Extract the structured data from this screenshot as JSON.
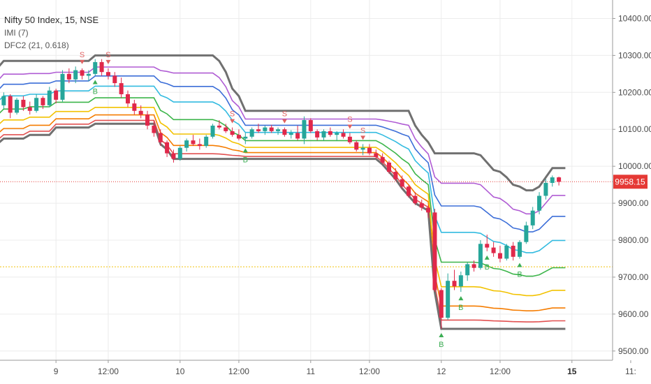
{
  "legend": {
    "title": "Nifty 50 Index, 15, NSE",
    "line2": "IMI (7)",
    "line3": "DFC2 (21, 0.618)"
  },
  "colors": {
    "up": "#26a69a",
    "down": "#e0284a",
    "outer": "#707070",
    "price_line": "#e53935",
    "mid_line": "#f1c40f",
    "signal_sell": "#e06060",
    "signal_buy": "#3cae54",
    "bands": [
      "#e25050",
      "#f57c00",
      "#f2c200",
      "#3cb54a",
      "#33bbe0",
      "#3c6ed8",
      "#b05cd4"
    ]
  },
  "chart_data": {
    "type": "candlestick",
    "title": "Nifty 50 Index, 15, NSE",
    "yaxis": {
      "ylim": [
        9475,
        10450
      ],
      "ticks": [
        "10400.00",
        "10300.00",
        "10200.00",
        "10100.00",
        "10000.00",
        "9900.00",
        "9800.00",
        "9700.00",
        "9600.00",
        "9500.00"
      ]
    },
    "xaxis": {
      "ticks": [
        {
          "label": "9",
          "bold": false,
          "bar": 9
        },
        {
          "label": "12:00",
          "bold": false,
          "bar": 17
        },
        {
          "label": "10",
          "bold": false,
          "bar": 28
        },
        {
          "label": "12:00",
          "bold": false,
          "bar": 37
        },
        {
          "label": "11",
          "bold": false,
          "bar": 48
        },
        {
          "label": "12:00",
          "bold": false,
          "bar": 57
        },
        {
          "label": "12",
          "bold": false,
          "bar": 68
        },
        {
          "label": "12:00",
          "bold": false,
          "bar": 77
        },
        {
          "label": "15",
          "bold": true,
          "bar": 88
        },
        {
          "label": "11:",
          "bold": false,
          "bar": 97
        }
      ]
    },
    "last_price": "9958.15",
    "last_value": 9958.15,
    "mid_line_value": 9728,
    "candles": [
      [
        10195,
        10205,
        10150,
        10165
      ],
      [
        10165,
        10200,
        10155,
        10190
      ],
      [
        10190,
        10195,
        10130,
        10145
      ],
      [
        10145,
        10185,
        10140,
        10180
      ],
      [
        10180,
        10190,
        10150,
        10160
      ],
      [
        10160,
        10175,
        10140,
        10150
      ],
      [
        10150,
        10195,
        10145,
        10185
      ],
      [
        10185,
        10190,
        10155,
        10165
      ],
      [
        10165,
        10215,
        10160,
        10205
      ],
      [
        10205,
        10210,
        10170,
        10180
      ],
      [
        10180,
        10260,
        10175,
        10250
      ],
      [
        10250,
        10265,
        10225,
        10235
      ],
      [
        10235,
        10270,
        10225,
        10260
      ],
      [
        10260,
        10265,
        10235,
        10245
      ],
      [
        10245,
        10260,
        10230,
        10250
      ],
      [
        10250,
        10290,
        10245,
        10282
      ],
      [
        10282,
        10290,
        10245,
        10255
      ],
      [
        10255,
        10265,
        10235,
        10245
      ],
      [
        10245,
        10255,
        10215,
        10225
      ],
      [
        10225,
        10240,
        10185,
        10195
      ],
      [
        10195,
        10205,
        10160,
        10170
      ],
      [
        10170,
        10180,
        10140,
        10150
      ],
      [
        10150,
        10165,
        10130,
        10140
      ],
      [
        10140,
        10150,
        10100,
        10110
      ],
      [
        10110,
        10125,
        10080,
        10090
      ],
      [
        10090,
        10100,
        10055,
        10065
      ],
      [
        10065,
        10070,
        10025,
        10035
      ],
      [
        10035,
        10045,
        10010,
        10020
      ],
      [
        10020,
        10055,
        10015,
        10050
      ],
      [
        10050,
        10075,
        10040,
        10070
      ],
      [
        10070,
        10085,
        10055,
        10060
      ],
      [
        10060,
        10075,
        10045,
        10055
      ],
      [
        10055,
        10085,
        10050,
        10080
      ],
      [
        10080,
        10115,
        10075,
        10110
      ],
      [
        10110,
        10125,
        10100,
        10105
      ],
      [
        10105,
        10115,
        10090,
        10095
      ],
      [
        10095,
        10105,
        10080,
        10085
      ],
      [
        10085,
        10100,
        10070,
        10075
      ],
      [
        10075,
        10090,
        10060,
        10080
      ],
      [
        10080,
        10105,
        10075,
        10100
      ],
      [
        10100,
        10115,
        10090,
        10095
      ],
      [
        10095,
        10110,
        10085,
        10105
      ],
      [
        10105,
        10112,
        10090,
        10095
      ],
      [
        10095,
        10105,
        10085,
        10100
      ],
      [
        10100,
        10105,
        10080,
        10085
      ],
      [
        10085,
        10098,
        10075,
        10090
      ],
      [
        10090,
        10110,
        10070,
        10075
      ],
      [
        10075,
        10135,
        10060,
        10125
      ],
      [
        10125,
        10130,
        10090,
        10095
      ],
      [
        10095,
        10100,
        10070,
        10078
      ],
      [
        10078,
        10100,
        10070,
        10095
      ],
      [
        10095,
        10105,
        10080,
        10085
      ],
      [
        10085,
        10095,
        10070,
        10090
      ],
      [
        10090,
        10100,
        10075,
        10080
      ],
      [
        10080,
        10090,
        10060,
        10065
      ],
      [
        10065,
        10070,
        10040,
        10045
      ],
      [
        10045,
        10060,
        10030,
        10050
      ],
      [
        10050,
        10060,
        10030,
        10035
      ],
      [
        10035,
        10045,
        10020,
        10025
      ],
      [
        10025,
        10035,
        10005,
        10010
      ],
      [
        10010,
        10015,
        9980,
        9985
      ],
      [
        9985,
        9995,
        9960,
        9965
      ],
      [
        9965,
        9975,
        9940,
        9945
      ],
      [
        9945,
        9950,
        9915,
        9920
      ],
      [
        9920,
        9930,
        9895,
        9900
      ],
      [
        9900,
        9910,
        9880,
        9888
      ],
      [
        9888,
        9895,
        9860,
        9875
      ],
      [
        9875,
        9885,
        9660,
        9665
      ],
      [
        9665,
        9670,
        9560,
        9590
      ],
      [
        9590,
        9710,
        9585,
        9690
      ],
      [
        9690,
        9720,
        9665,
        9675
      ],
      [
        9675,
        9715,
        9660,
        9705
      ],
      [
        9705,
        9740,
        9690,
        9735
      ],
      [
        9735,
        9745,
        9715,
        9725
      ],
      [
        9725,
        9800,
        9720,
        9790
      ],
      [
        9790,
        9815,
        9770,
        9780
      ],
      [
        9780,
        9795,
        9755,
        9765
      ],
      [
        9765,
        9785,
        9740,
        9750
      ],
      [
        9750,
        9790,
        9745,
        9785
      ],
      [
        9785,
        9795,
        9745,
        9755
      ],
      [
        9755,
        9800,
        9750,
        9795
      ],
      [
        9795,
        9850,
        9790,
        9840
      ],
      [
        9840,
        9890,
        9830,
        9880
      ],
      [
        9880,
        9930,
        9870,
        9920
      ],
      [
        9920,
        9965,
        9910,
        9955
      ],
      [
        9955,
        9975,
        9945,
        9970
      ],
      [
        9970,
        9972,
        9948,
        9958
      ]
    ],
    "outer_upper": [
      10265,
      10285,
      10285,
      10285,
      10285,
      10285,
      10285,
      10285,
      10285,
      10285,
      10285,
      10285,
      10285,
      10285,
      10285,
      10300,
      10300,
      10300,
      10300,
      10300,
      10300,
      10300,
      10300,
      10300,
      10300,
      10300,
      10300,
      10300,
      10300,
      10300,
      10300,
      10300,
      10300,
      10300,
      10285,
      10255,
      10210,
      10190,
      10150,
      10150,
      10150,
      10150,
      10150,
      10150,
      10150,
      10150,
      10150,
      10150,
      10150,
      10150,
      10150,
      10150,
      10150,
      10150,
      10150,
      10150,
      10150,
      10150,
      10150,
      10150,
      10150,
      10150,
      10150,
      10150,
      10110,
      10085,
      10065,
      10035,
      10035,
      10035,
      10035,
      10035,
      10035,
      10035,
      10030,
      10010,
      9990,
      9985,
      9970,
      9950,
      9945,
      9935,
      9935,
      9945,
      9970,
      9995,
      9995,
      9995
    ],
    "outer_lower": [
      10060,
      10075,
      10075,
      10075,
      10075,
      10085,
      10085,
      10085,
      10085,
      10105,
      10105,
      10105,
      10105,
      10105,
      10105,
      10115,
      10115,
      10115,
      10115,
      10115,
      10115,
      10115,
      10115,
      10115,
      10115,
      10060,
      10045,
      10020,
      10020,
      10020,
      10020,
      10020,
      10020,
      10020,
      10020,
      10020,
      10020,
      10020,
      10020,
      10020,
      10020,
      10020,
      10020,
      10020,
      10020,
      10020,
      10020,
      10020,
      10020,
      10020,
      10020,
      10020,
      10020,
      10020,
      10020,
      10020,
      10020,
      10020,
      10020,
      10005,
      9985,
      9965,
      9940,
      9920,
      9900,
      9890,
      9880,
      9660,
      9560,
      9560,
      9560,
      9560,
      9560,
      9560,
      9560,
      9560,
      9560,
      9560,
      9560,
      9560,
      9560,
      9560,
      9560,
      9560,
      9560,
      9560,
      9560,
      9560
    ],
    "range_start": 80,
    "bands": [
      {
        "ratio": 0.05
      },
      {
        "ratio": 0.13
      },
      {
        "ratio": 0.24
      },
      {
        "ratio": 0.38
      },
      {
        "ratio": 0.55
      },
      {
        "ratio": 0.7
      },
      {
        "ratio": 0.83
      }
    ],
    "signals": [
      {
        "bar": 13,
        "type": "S",
        "pos": "above"
      },
      {
        "bar": 17,
        "type": "S",
        "pos": "above"
      },
      {
        "bar": 15,
        "type": "B",
        "pos": "below"
      },
      {
        "bar": 36,
        "type": "S",
        "pos": "above"
      },
      {
        "bar": 44,
        "type": "S",
        "pos": "above"
      },
      {
        "bar": 38,
        "type": "B",
        "pos": "below"
      },
      {
        "bar": 54,
        "type": "S",
        "pos": "above"
      },
      {
        "bar": 56,
        "type": "S",
        "pos": "above"
      },
      {
        "bar": 68,
        "type": "B",
        "pos": "below"
      },
      {
        "bar": 71,
        "type": "B",
        "pos": "below"
      },
      {
        "bar": 75,
        "type": "B",
        "pos": "below"
      },
      {
        "bar": 80,
        "type": "B",
        "pos": "below"
      }
    ]
  }
}
